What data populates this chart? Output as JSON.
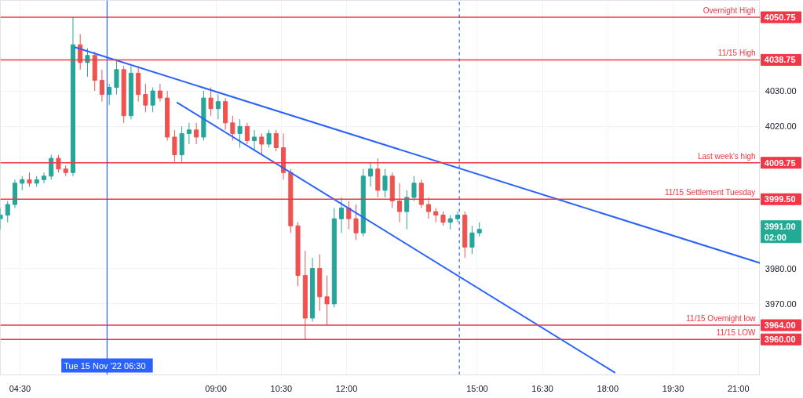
{
  "chart_data": {
    "type": "candlestick",
    "xlim": [
      4.05,
      21.5
    ],
    "ylim": [
      3950,
      4055.5
    ],
    "xticks": [
      {
        "value": 4.5,
        "label": "04:30"
      },
      {
        "value": 9,
        "label": "09:00"
      },
      {
        "value": 10.5,
        "label": "10:30"
      },
      {
        "value": 12,
        "label": "12:00"
      },
      {
        "value": 15,
        "label": "15:00"
      },
      {
        "value": 16.5,
        "label": "16:30"
      },
      {
        "value": 18,
        "label": "18:00"
      },
      {
        "value": 19.5,
        "label": "19:30"
      },
      {
        "value": 21,
        "label": "21:00"
      }
    ],
    "yticks": [
      {
        "value": 3970,
        "label": "3970.00"
      },
      {
        "value": 3980,
        "label": "3980.00"
      },
      {
        "value": 4020,
        "label": "4020.00"
      },
      {
        "value": 4030,
        "label": "4030.00"
      }
    ],
    "grid": true,
    "series": [
      {
        "type": "candlestick",
        "x": [
          4.05,
          4.217,
          4.383,
          4.55,
          4.717,
          4.883,
          5.05,
          5.217,
          5.383,
          5.55,
          5.717,
          5.883,
          6.05,
          6.217,
          6.383,
          6.55,
          6.717,
          6.883,
          7.05,
          7.217,
          7.383,
          7.55,
          7.717,
          7.883,
          8.05,
          8.217,
          8.383,
          8.55,
          8.717,
          8.883,
          9.05,
          9.217,
          9.383,
          9.55,
          9.717,
          9.883,
          10.05,
          10.217,
          10.383,
          10.55,
          10.717,
          10.883,
          11.05,
          11.217,
          11.383,
          11.55,
          11.717,
          11.883,
          12.05,
          12.217,
          12.383,
          12.55,
          12.717,
          12.883,
          13.05,
          13.217,
          13.383,
          13.55,
          13.717,
          13.883,
          14.05,
          14.217,
          14.383,
          14.55,
          14.717,
          14.883,
          15.05
        ],
        "ohlc": [
          [
            3994,
            3997,
            3991,
            3995
          ],
          [
            3995,
            3999,
            3993,
            3998
          ],
          [
            3998,
            4005,
            3997,
            4004
          ],
          [
            4004,
            4006,
            4002,
            4005
          ],
          [
            4005,
            4007,
            4003,
            4004
          ],
          [
            4004,
            4006,
            4003,
            4005
          ],
          [
            4005,
            4007,
            4004,
            4006
          ],
          [
            4006,
            4012,
            4005,
            4011
          ],
          [
            4011,
            4012,
            4007,
            4008
          ],
          [
            4008,
            4009,
            4006,
            4007
          ],
          [
            4007,
            4050.75,
            4006,
            4043
          ],
          [
            4043,
            4046,
            4036,
            4038
          ],
          [
            4038,
            4042,
            4034,
            4040
          ],
          [
            4040,
            4041,
            4030,
            4033
          ],
          [
            4033,
            4036,
            4027,
            4029
          ],
          [
            4029,
            4032,
            4026,
            4031
          ],
          [
            4031,
            4039,
            4029,
            4036
          ],
          [
            4036,
            4037,
            4021,
            4023
          ],
          [
            4023,
            4037,
            4022,
            4035
          ],
          [
            4035,
            4037,
            4027,
            4029
          ],
          [
            4029,
            4032,
            4024,
            4026
          ],
          [
            4026,
            4031,
            4024,
            4030
          ],
          [
            4030,
            4032,
            4027,
            4028
          ],
          [
            4028,
            4030,
            4016,
            4017
          ],
          [
            4017,
            4019,
            4010,
            4012
          ],
          [
            4012,
            4020,
            4010,
            4018
          ],
          [
            4018,
            4021,
            4015,
            4019
          ],
          [
            4019,
            4021,
            4015,
            4017
          ],
          [
            4017,
            4030,
            4016,
            4028
          ],
          [
            4028,
            4031,
            4023,
            4025
          ],
          [
            4025,
            4029,
            4022,
            4027
          ],
          [
            4027,
            4028,
            4019,
            4021
          ],
          [
            4021,
            4023,
            4016,
            4018
          ],
          [
            4018,
            4022,
            4014,
            4020
          ],
          [
            4020,
            4021,
            4015,
            4016
          ],
          [
            4016,
            4019,
            4013,
            4017
          ],
          [
            4017,
            4018,
            4012,
            4015
          ],
          [
            4015,
            4019,
            4014,
            4018
          ],
          [
            4018,
            4019,
            4013,
            4014
          ],
          [
            4014,
            4018,
            4005,
            4007
          ],
          [
            4007,
            4008,
            3990,
            3992
          ],
          [
            3992,
            3993,
            3975,
            3978
          ],
          [
            3978,
            3985,
            3960,
            3966
          ],
          [
            3966,
            3983,
            3965,
            3980
          ],
          [
            3980,
            3984,
            3968,
            3972
          ],
          [
            3972,
            3978,
            3964,
            3970
          ],
          [
            3970,
            3997,
            3969,
            3994
          ],
          [
            3994,
            4000,
            3990,
            3997
          ],
          [
            3997,
            3999,
            3991,
            3994
          ],
          [
            3994,
            3998,
            3988,
            3990
          ],
          [
            3990,
            4008,
            3989,
            4006
          ],
          [
            4006,
            4010,
            4003,
            4008
          ],
          [
            4008,
            4011,
            4000,
            4002
          ],
          [
            4002,
            4008,
            4000,
            4006
          ],
          [
            4006,
            4007,
            3997,
            3999
          ],
          [
            3999,
            4004,
            3993,
            3996
          ],
          [
            3996,
            4002,
            3991,
            4000
          ],
          [
            4000,
            4006,
            3999,
            4004
          ],
          [
            4004,
            4005,
            3997,
            3998
          ],
          [
            3998,
            4000,
            3994,
            3996
          ],
          [
            3996,
            3997,
            3993,
            3995
          ],
          [
            3995,
            3996,
            3992,
            3993
          ],
          [
            3993,
            3995,
            3991,
            3994
          ],
          [
            3994,
            3996,
            3993,
            3995
          ],
          [
            3995,
            3996,
            3983,
            3986
          ],
          [
            3986,
            3992,
            3984,
            3990
          ],
          [
            3990,
            3993,
            3989,
            3991
          ]
        ]
      },
      {
        "type": "line",
        "color": "#2962ff",
        "x": [
          5.76,
          21.5
        ],
        "values": [
          4042.3,
          3981.5
        ]
      },
      {
        "type": "line",
        "color": "#2962ff",
        "x": [
          8.1,
          18.17
        ],
        "values": [
          4026.8,
          3950.6
        ]
      }
    ],
    "ref_lines": [
      {
        "axis": "y",
        "value": 4050.75,
        "label": "Overnight High",
        "color": "#f23645"
      },
      {
        "axis": "y",
        "value": 4038.75,
        "label": "11/15 High",
        "color": "#f23645"
      },
      {
        "axis": "y",
        "value": 4009.75,
        "label": "Last week's high",
        "color": "#f23645"
      },
      {
        "axis": "y",
        "value": 3999.5,
        "label": "11/15 Settlement Tuesday",
        "color": "#f23645"
      },
      {
        "axis": "y",
        "value": 3964.0,
        "label": "11/15 Overnight low",
        "color": "#f23645"
      },
      {
        "axis": "y",
        "value": 3960.0,
        "label": "11/15 LOW",
        "color": "#f23645"
      },
      {
        "axis": "x",
        "value": 6.5,
        "label": "Tue 15 Nov '22   06:30",
        "color": "#2962ff",
        "line_style": "solid"
      },
      {
        "axis": "x",
        "value": 14.59,
        "color": "#2962ff",
        "line_style": "dashed"
      }
    ],
    "annotations": [
      "4050.75",
      "4038.75",
      "4009.75",
      "3999.50",
      "3964.00",
      "3960.00",
      "3991.00",
      "02:00"
    ]
  }
}
